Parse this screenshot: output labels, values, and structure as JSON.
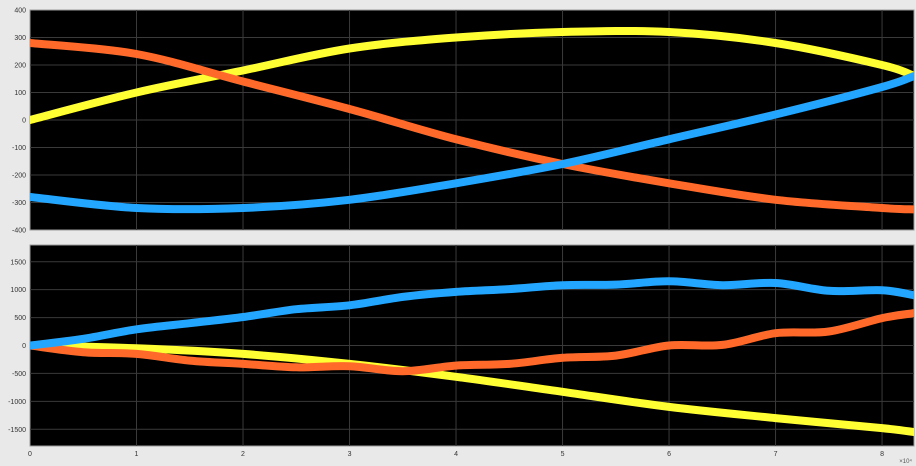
{
  "chart_data": [
    {
      "type": "line",
      "ylim": [
        -400,
        400
      ],
      "xlim": [
        0,
        8.3
      ],
      "grid": true,
      "y_ticks": [
        "400",
        "300",
        "200",
        "100",
        "0",
        "-100",
        "-200",
        "-300",
        "-400"
      ],
      "x_ticks": [],
      "series": [
        {
          "color": "#ffff33",
          "x": [
            0,
            1,
            2,
            3,
            4,
            5,
            6,
            7,
            8,
            8.3
          ],
          "values": [
            0,
            100,
            180,
            260,
            300,
            320,
            320,
            280,
            200,
            160
          ]
        },
        {
          "color": "#ff6a2a",
          "x": [
            0,
            1,
            2,
            3,
            4,
            5,
            6,
            7,
            8,
            8.3
          ],
          "values": [
            280,
            240,
            140,
            40,
            -70,
            -160,
            -230,
            -290,
            -320,
            -325
          ]
        },
        {
          "color": "#22a6ff",
          "x": [
            0,
            1,
            2,
            3,
            4,
            5,
            6,
            7,
            8,
            8.3
          ],
          "values": [
            -280,
            -320,
            -320,
            -290,
            -230,
            -160,
            -70,
            20,
            120,
            160
          ]
        }
      ]
    },
    {
      "type": "line",
      "ylim": [
        -1800,
        1800
      ],
      "xlim": [
        0,
        8.3
      ],
      "grid": true,
      "y_ticks": [
        "1500",
        "1000",
        "500",
        "0",
        "-500",
        "-1000",
        "-1500"
      ],
      "x_ticks": [
        "0",
        "1",
        "2",
        "3",
        "4",
        "5",
        "6",
        "7",
        "8"
      ],
      "x_exponent": "×10⁴",
      "series": [
        {
          "color": "#ffff33",
          "x": [
            0,
            1,
            2,
            3,
            4,
            5,
            6,
            7,
            8,
            8.3
          ],
          "values": [
            0,
            -50,
            -150,
            -330,
            -560,
            -830,
            -1100,
            -1300,
            -1480,
            -1550
          ]
        },
        {
          "color": "#ff6a2a",
          "x": [
            0,
            0.5,
            1,
            1.5,
            2,
            2.5,
            3,
            3.5,
            4,
            4.5,
            5,
            5.5,
            6,
            6.5,
            7,
            7.5,
            8,
            8.3
          ],
          "values": [
            0,
            -120,
            -150,
            -270,
            -330,
            -390,
            -370,
            -460,
            -360,
            -330,
            -220,
            -180,
            0,
            10,
            220,
            250,
            490,
            580
          ]
        },
        {
          "color": "#22a6ff",
          "x": [
            0,
            0.5,
            1,
            1.5,
            2,
            2.5,
            3,
            3.5,
            4,
            4.5,
            5,
            5.5,
            6,
            6.5,
            7,
            7.5,
            8,
            8.3
          ],
          "values": [
            0,
            120,
            290,
            400,
            510,
            650,
            720,
            870,
            960,
            1010,
            1080,
            1090,
            1150,
            1080,
            1120,
            980,
            990,
            900
          ]
        }
      ]
    }
  ]
}
